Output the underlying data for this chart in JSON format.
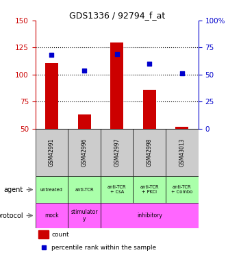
{
  "title": "GDS1336 / 92794_f_at",
  "samples": [
    "GSM42991",
    "GSM42996",
    "GSM42997",
    "GSM42998",
    "GSM43013"
  ],
  "bar_values": [
    111,
    63,
    130,
    86,
    52
  ],
  "bar_bottom": 50,
  "blue_values": [
    68,
    54,
    69,
    60,
    51
  ],
  "left_ylim": [
    50,
    150
  ],
  "left_yticks": [
    50,
    75,
    100,
    125,
    150
  ],
  "right_ylim": [
    0,
    100
  ],
  "right_yticks": [
    0,
    25,
    50,
    75,
    100
  ],
  "right_yticklabels": [
    "0",
    "25",
    "50",
    "75",
    "100%"
  ],
  "bar_color": "#cc0000",
  "blue_color": "#0000cc",
  "agent_labels": [
    "untreated",
    "anti-TCR",
    "anti-TCR\n+ CsA",
    "anti-TCR\n+ PKCi",
    "anti-TCR\n+ Combo"
  ],
  "agent_bg_color": "#aaffaa",
  "protocol_bg_color": "#ff66ff",
  "gsm_bg_color": "#cccccc",
  "legend_count_color": "#cc0000",
  "legend_pct_color": "#0000cc",
  "hline_positions": [
    75,
    100,
    125
  ],
  "left_ylabel_color": "#cc0000",
  "right_ylabel_color": "#0000cc",
  "figsize": [
    3.33,
    3.75
  ],
  "dpi": 100
}
